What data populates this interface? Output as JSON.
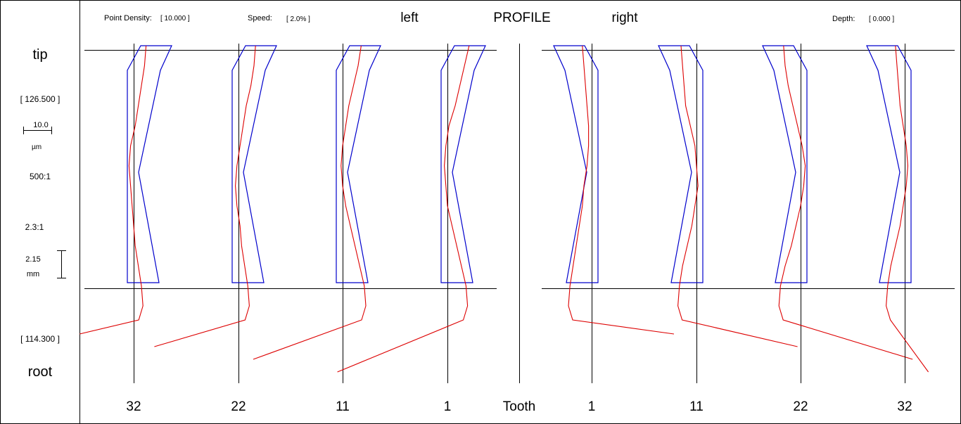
{
  "header": {
    "point_density_label": "Point Density:",
    "point_density_value": "[ 10.000 ]",
    "speed_label": "Speed:",
    "speed_value": "[ 2.0% ]",
    "left_label": "left",
    "profile_label": "PROFILE",
    "right_label": "right",
    "depth_label": "Depth:",
    "depth_value": "[ 0.000 ]"
  },
  "sidebar": {
    "tip_label": "tip",
    "tip_value": "[ 126.500 ]",
    "scale_value": "10.0",
    "scale_unit": "µm",
    "magnification": "500:1",
    "ratio": "2.3:1",
    "length_value": "2.15",
    "length_unit": "mm",
    "root_value": "[ 114.300 ]",
    "root_label": "root"
  },
  "footer": {
    "tooth_label": "Tooth"
  },
  "colors": {
    "tolerance": "#0000cc",
    "measured": "#dd0000",
    "axis": "#000000"
  },
  "chart_data": {
    "type": "line",
    "title": "PROFILE",
    "diameter_range": [
      114.3,
      126.5
    ],
    "panels": [
      {
        "side": "left",
        "teeth": [
          {
            "label": "32",
            "deviations": [
              8,
              7,
              5,
              3,
              1,
              -2,
              -3,
              -2,
              -1,
              0,
              1,
              3,
              5,
              6
            ]
          },
          {
            "label": "22",
            "deviations": [
              11,
              10,
              8,
              5,
              3,
              1,
              -1,
              -2,
              -1,
              1,
              2,
              4,
              6,
              7
            ]
          },
          {
            "label": "11",
            "deviations": [
              12,
              10,
              7,
              4,
              2,
              0,
              -1,
              0,
              2,
              5,
              8,
              11,
              14,
              15
            ]
          },
          {
            "label": "1",
            "deviations": [
              14,
              11,
              8,
              5,
              1,
              -1,
              -2,
              -1,
              0,
              3,
              6,
              9,
              12,
              13
            ]
          }
        ]
      },
      {
        "side": "right",
        "teeth": [
          {
            "label": "1",
            "deviations": [
              -6,
              -5,
              -4,
              -3,
              -2,
              -2,
              -3,
              -5,
              -6,
              -8,
              -10,
              -12,
              -14,
              -15
            ]
          },
          {
            "label": "11",
            "deviations": [
              -10,
              -9,
              -8,
              -7,
              -4,
              -1,
              0,
              1,
              -1,
              -3,
              -6,
              -9,
              -11,
              -12
            ]
          },
          {
            "label": "22",
            "deviations": [
              -11,
              -10,
              -8,
              -5,
              -2,
              1,
              3,
              2,
              0,
              -3,
              -6,
              -10,
              -13,
              -14
            ]
          },
          {
            "label": "32",
            "deviations": [
              -6,
              -5,
              -4,
              -3,
              -1,
              1,
              2,
              1,
              -1,
              -3,
              -6,
              -9,
              -11,
              -12
            ]
          }
        ]
      }
    ]
  }
}
